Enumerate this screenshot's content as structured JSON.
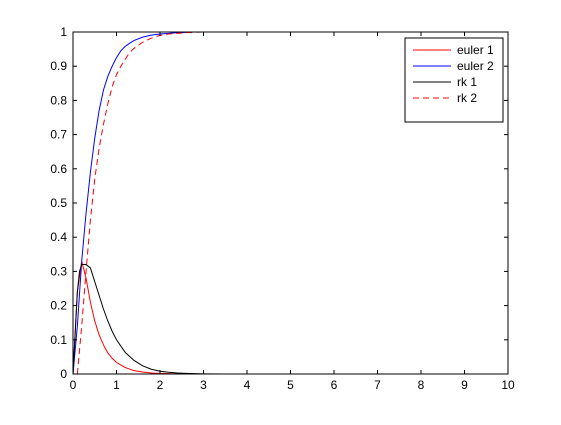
{
  "chart_data": {
    "type": "line",
    "title": "",
    "xlabel": "",
    "ylabel": "",
    "xlim": [
      0,
      10
    ],
    "ylim": [
      0,
      1
    ],
    "x_ticks": [
      "0",
      "1",
      "2",
      "3",
      "4",
      "5",
      "6",
      "7",
      "8",
      "9",
      "10"
    ],
    "y_ticks": [
      "0",
      "0.1",
      "0.2",
      "0.3",
      "0.4",
      "0.5",
      "0.6",
      "0.7",
      "0.8",
      "0.9",
      "1"
    ],
    "grid": false,
    "legend_position": "top-right",
    "series": [
      {
        "name": "euler 1",
        "color": "#ff0000",
        "dash": "solid",
        "x": [
          0,
          0.1,
          0.2,
          0.3,
          0.4,
          0.5,
          0.6,
          0.7,
          0.8,
          0.9,
          1.0,
          1.2,
          1.4,
          1.6,
          1.8,
          2.0,
          2.2,
          2.4,
          2.6,
          2.8,
          3.0,
          3.5,
          4,
          5,
          6,
          7,
          8,
          9,
          10
        ],
        "y": [
          0,
          0.24,
          0.33,
          0.28,
          0.21,
          0.155,
          0.115,
          0.085,
          0.062,
          0.046,
          0.034,
          0.019,
          0.01,
          0.006,
          0.003,
          0.002,
          0.001,
          0.0005,
          0.0003,
          0,
          0,
          0,
          0,
          0,
          0,
          0,
          0,
          0,
          0
        ]
      },
      {
        "name": "euler 2",
        "color": "#0000ff",
        "dash": "solid",
        "x": [
          0,
          0.1,
          0.2,
          0.3,
          0.4,
          0.5,
          0.6,
          0.7,
          0.8,
          0.9,
          1.0,
          1.1,
          1.2,
          1.3,
          1.4,
          1.6,
          1.8,
          2.0,
          2.2,
          2.4,
          2.6,
          2.8,
          2.95
        ],
        "y": [
          0,
          0.14,
          0.33,
          0.47,
          0.59,
          0.69,
          0.77,
          0.83,
          0.87,
          0.9,
          0.925,
          0.945,
          0.958,
          0.967,
          0.975,
          0.985,
          0.991,
          0.994,
          0.996,
          0.998,
          0.999,
          1.0,
          1.0
        ]
      },
      {
        "name": "rk 1",
        "color": "#000000",
        "dash": "solid",
        "x": [
          0,
          0.1,
          0.15,
          0.2,
          0.3,
          0.4,
          0.5,
          0.6,
          0.7,
          0.8,
          0.9,
          1.0,
          1.2,
          1.4,
          1.6,
          1.8,
          2.0,
          2.2,
          2.4,
          2.6,
          2.8,
          3.0,
          3.5,
          4,
          5,
          6,
          7,
          8,
          9,
          10
        ],
        "y": [
          0,
          0.24,
          0.3,
          0.32,
          0.32,
          0.31,
          0.27,
          0.23,
          0.19,
          0.155,
          0.125,
          0.1,
          0.063,
          0.04,
          0.024,
          0.014,
          0.008,
          0.005,
          0.003,
          0.002,
          0.001,
          0.0005,
          0,
          0,
          0,
          0,
          0,
          0,
          0,
          0
        ]
      },
      {
        "name": "rk 2",
        "color": "#ff0000",
        "dash": "dashed",
        "x": [
          0.1,
          0.2,
          0.3,
          0.4,
          0.5,
          0.6,
          0.7,
          0.8,
          0.9,
          1.0,
          1.1,
          1.2,
          1.3,
          1.4,
          1.6,
          1.8,
          2.0,
          2.2,
          2.4,
          2.6,
          2.8,
          3.0,
          3.2,
          3.4
        ],
        "y": [
          0,
          0.14,
          0.3,
          0.45,
          0.57,
          0.66,
          0.73,
          0.79,
          0.84,
          0.875,
          0.9,
          0.92,
          0.94,
          0.952,
          0.97,
          0.982,
          0.99,
          0.994,
          0.996,
          0.998,
          0.999,
          1.0,
          1.0,
          1.0
        ]
      }
    ]
  }
}
